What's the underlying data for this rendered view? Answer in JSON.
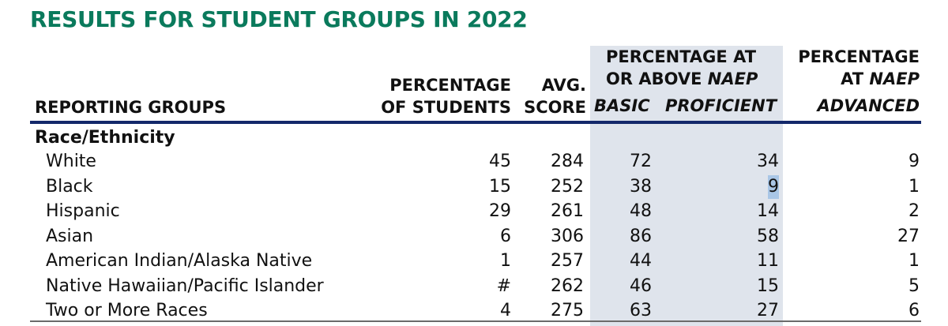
{
  "title": "RESULTS FOR STUDENT GROUPS IN 2022",
  "headers": {
    "reporting_groups": "REPORTING GROUPS",
    "pct_students_line1": "PERCENTAGE",
    "pct_students_line2": "OF STUDENTS",
    "avg_score_line1": "AVG.",
    "avg_score_line2": "SCORE",
    "at_or_above_line1": "PERCENTAGE AT",
    "at_or_above_line2_prefix": "OR ABOVE ",
    "at_or_above_line2_italic": "NAEP",
    "basic": "BASIC",
    "proficient": "PROFICIENT",
    "at_naep_line1": "PERCENTAGE",
    "at_naep_line2_prefix": "AT ",
    "at_naep_line2_italic": "NAEP",
    "advanced": "ADVANCED"
  },
  "section_label": "Race/Ethnicity",
  "rows": [
    {
      "label": "White",
      "pct_students": "45",
      "avg_score": "284",
      "basic": "72",
      "proficient": "34",
      "advanced": "9"
    },
    {
      "label": "Black",
      "pct_students": "15",
      "avg_score": "252",
      "basic": "38",
      "proficient": "9",
      "advanced": "1"
    },
    {
      "label": "Hispanic",
      "pct_students": "29",
      "avg_score": "261",
      "basic": "48",
      "proficient": "14",
      "advanced": "2"
    },
    {
      "label": "Asian",
      "pct_students": "6",
      "avg_score": "306",
      "basic": "86",
      "proficient": "58",
      "advanced": "27"
    },
    {
      "label": "American Indian/Alaska Native",
      "pct_students": "1",
      "avg_score": "257",
      "basic": "44",
      "proficient": "11",
      "advanced": "1"
    },
    {
      "label": "Native Hawaiian/Pacific Islander",
      "pct_students": "#",
      "avg_score": "262",
      "basic": "46",
      "proficient": "15",
      "advanced": "5"
    },
    {
      "label": "Two or More Races",
      "pct_students": "4",
      "avg_score": "275",
      "basic": "63",
      "proficient": "27",
      "advanced": "6"
    }
  ],
  "colors": {
    "title": "#0a7a5c",
    "rule": "#13286a",
    "shade": "#dfe4ec",
    "selection": "#a9c6e6"
  }
}
